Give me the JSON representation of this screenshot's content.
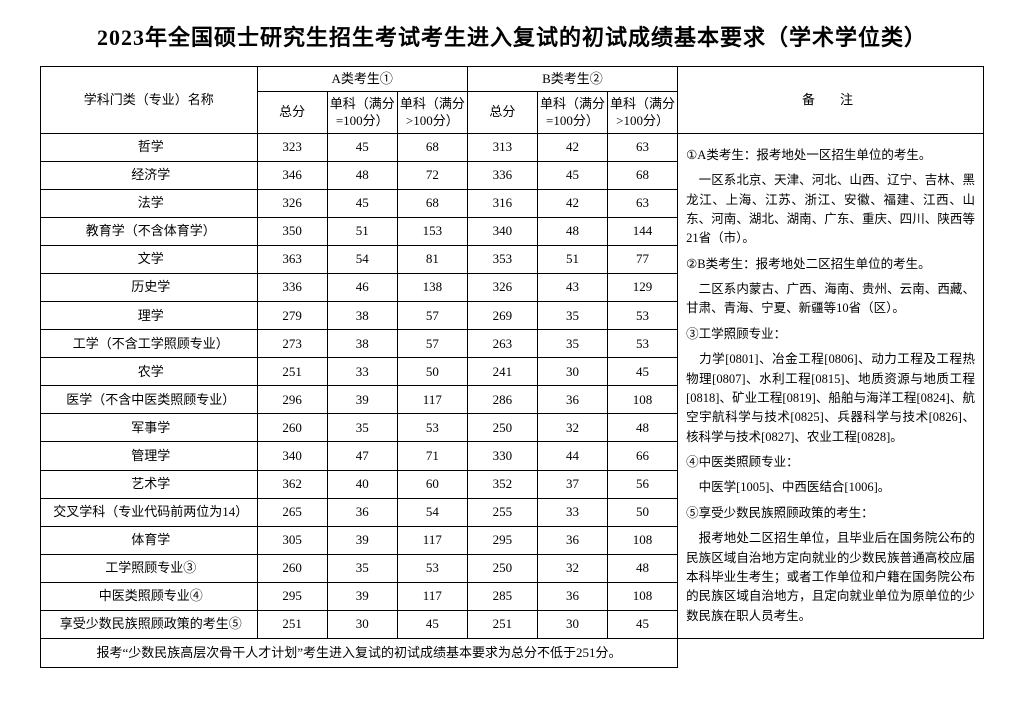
{
  "title": "2023年全国硕士研究生招生考试考生进入复试的初试成绩基本要求（学术学位类）",
  "headers": {
    "subject": "学科门类（专业）名称",
    "groupA": "A类考生①",
    "groupB": "B类考生②",
    "total": "总分",
    "sub100": "单科（满分=100分）",
    "subOver100": "单科（满分>100分）",
    "notes": "备　注"
  },
  "rows": [
    {
      "s": "哲学",
      "a": [
        323,
        45,
        68
      ],
      "b": [
        313,
        42,
        63
      ]
    },
    {
      "s": "经济学",
      "a": [
        346,
        48,
        72
      ],
      "b": [
        336,
        45,
        68
      ]
    },
    {
      "s": "法学",
      "a": [
        326,
        45,
        68
      ],
      "b": [
        316,
        42,
        63
      ]
    },
    {
      "s": "教育学（不含体育学）",
      "a": [
        350,
        51,
        153
      ],
      "b": [
        340,
        48,
        144
      ]
    },
    {
      "s": "文学",
      "a": [
        363,
        54,
        81
      ],
      "b": [
        353,
        51,
        77
      ]
    },
    {
      "s": "历史学",
      "a": [
        336,
        46,
        138
      ],
      "b": [
        326,
        43,
        129
      ]
    },
    {
      "s": "理学",
      "a": [
        279,
        38,
        57
      ],
      "b": [
        269,
        35,
        53
      ]
    },
    {
      "s": "工学（不含工学照顾专业）",
      "a": [
        273,
        38,
        57
      ],
      "b": [
        263,
        35,
        53
      ]
    },
    {
      "s": "农学",
      "a": [
        251,
        33,
        50
      ],
      "b": [
        241,
        30,
        45
      ]
    },
    {
      "s": "医学（不含中医类照顾专业）",
      "a": [
        296,
        39,
        117
      ],
      "b": [
        286,
        36,
        108
      ]
    },
    {
      "s": "军事学",
      "a": [
        260,
        35,
        53
      ],
      "b": [
        250,
        32,
        48
      ]
    },
    {
      "s": "管理学",
      "a": [
        340,
        47,
        71
      ],
      "b": [
        330,
        44,
        66
      ]
    },
    {
      "s": "艺术学",
      "a": [
        362,
        40,
        60
      ],
      "b": [
        352,
        37,
        56
      ]
    },
    {
      "s": "交叉学科（专业代码前两位为14）",
      "a": [
        265,
        36,
        54
      ],
      "b": [
        255,
        33,
        50
      ]
    },
    {
      "s": "体育学",
      "a": [
        305,
        39,
        117
      ],
      "b": [
        295,
        36,
        108
      ]
    },
    {
      "s": "工学照顾专业③",
      "a": [
        260,
        35,
        53
      ],
      "b": [
        250,
        32,
        48
      ]
    },
    {
      "s": "中医类照顾专业④",
      "a": [
        295,
        39,
        117
      ],
      "b": [
        285,
        36,
        108
      ]
    },
    {
      "s": "享受少数民族照顾政策的考生⑤",
      "a": [
        251,
        30,
        45
      ],
      "b": [
        251,
        30,
        45
      ]
    }
  ],
  "footer": "报考“少数民族高层次骨干人才计划”考生进入复试的初试成绩基本要求为总分不低于251分。",
  "notes": [
    "①A类考生：报考地处一区招生单位的考生。",
    "　一区系北京、天津、河北、山西、辽宁、吉林、黑龙江、上海、江苏、浙江、安徽、福建、江西、山东、河南、湖北、湖南、广东、重庆、四川、陕西等21省（市）。",
    "②B类考生：报考地处二区招生单位的考生。",
    "　二区系内蒙古、广西、海南、贵州、云南、西藏、甘肃、青海、宁夏、新疆等10省（区）。",
    "③工学照顾专业：",
    "　力学[0801]、冶金工程[0806]、动力工程及工程热物理[0807]、水利工程[0815]、地质资源与地质工程[0818]、矿业工程[0819]、船舶与海洋工程[0824]、航空宇航科学与技术[0825]、兵器科学与技术[0826]、核科学与技术[0827]、农业工程[0828]。",
    "④中医类照顾专业：",
    "　中医学[1005]、中西医结合[1006]。",
    "⑤享受少数民族照顾政策的考生：",
    "　报考地处二区招生单位，且毕业后在国务院公布的民族区域自治地方定向就业的少数民族普通高校应届本科毕业生考生；或者工作单位和户籍在国务院公布的民族区域自治地方，且定向就业单位为原单位的少数民族在职人员考生。"
  ]
}
